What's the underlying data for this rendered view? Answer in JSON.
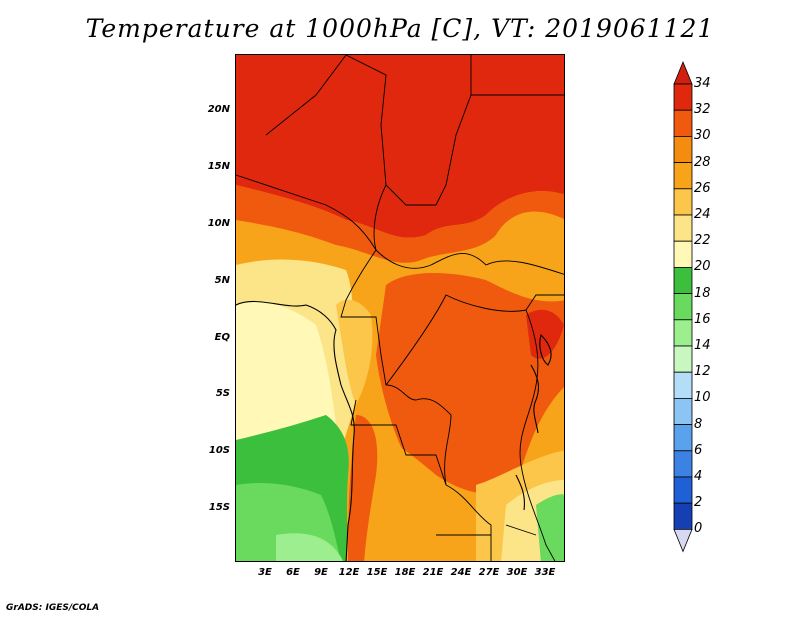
{
  "title": "Temperature at 1000hPa [C], VT: 2019061121",
  "credit": "GrADS: IGES/COLA",
  "map": {
    "variable": "Temperature",
    "level": "1000hPa",
    "units": "C",
    "valid_time": "2019061121",
    "region": "Central Africa",
    "lat_labels": [
      "20N",
      "15N",
      "10N",
      "5N",
      "EQ",
      "5S",
      "10S",
      "15S"
    ],
    "lon_labels": [
      "3E",
      "6E",
      "9E",
      "12E",
      "15E",
      "18E",
      "21E",
      "24E",
      "27E",
      "30E",
      "33E"
    ]
  },
  "colorbar": {
    "labels": [
      "34",
      "32",
      "30",
      "28",
      "26",
      "24",
      "22",
      "20",
      "18",
      "16",
      "14",
      "12",
      "10",
      "8",
      "6",
      "4",
      "2",
      "0"
    ],
    "colors": [
      "#e0280e",
      "#f05a0e",
      "#f48c10",
      "#f7a41a",
      "#fbc64a",
      "#fce588",
      "#fff8b6",
      "#3cbf3c",
      "#6ada5e",
      "#9cee8e",
      "#c8f8c0",
      "#b4ddf8",
      "#8cc4f4",
      "#5aa2ec",
      "#3c82e4",
      "#2060d6",
      "#1440b4",
      "#0c1a78"
    ],
    "over_color": "#d02010",
    "under_color": "#d8d8f0"
  }
}
